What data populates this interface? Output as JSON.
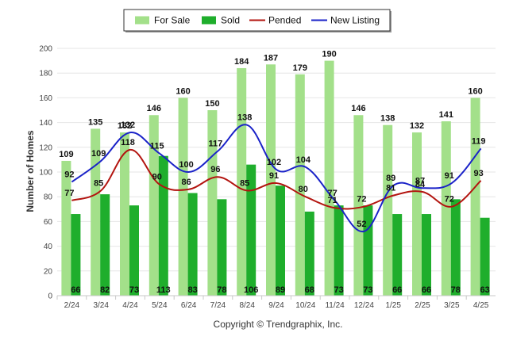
{
  "chart_data": {
    "type": "bar",
    "categories": [
      "2/24",
      "3/24",
      "4/24",
      "5/24",
      "6/24",
      "7/24",
      "8/24",
      "9/24",
      "10/24",
      "11/24",
      "12/24",
      "1/25",
      "2/25",
      "3/25",
      "4/25"
    ],
    "series": [
      {
        "name": "For Sale",
        "kind": "bar",
        "color": "#a3e08a",
        "values": [
          109,
          135,
          132,
          146,
          160,
          150,
          184,
          187,
          179,
          190,
          146,
          138,
          132,
          141,
          160
        ]
      },
      {
        "name": "Sold",
        "kind": "bar",
        "color": "#1fae2c",
        "values": [
          66,
          82,
          73,
          113,
          83,
          78,
          106,
          89,
          68,
          73,
          73,
          66,
          66,
          78,
          63
        ]
      },
      {
        "name": "Pended",
        "kind": "line",
        "color": "#b3140f",
        "values": [
          77,
          85,
          118,
          90,
          86,
          96,
          85,
          91,
          80,
          71,
          72,
          81,
          84,
          72,
          93
        ]
      },
      {
        "name": "New Listing",
        "kind": "line",
        "color": "#1a22c8",
        "values": [
          92,
          109,
          132,
          115,
          100,
          117,
          138,
          102,
          104,
          77,
          52,
          89,
          87,
          91,
          119
        ]
      }
    ],
    "ylabel": "Number of Homes",
    "xlabel": "",
    "ylim": [
      0,
      200
    ],
    "yticks": [
      0,
      20,
      40,
      60,
      80,
      100,
      120,
      140,
      160,
      180,
      200
    ],
    "grid": true,
    "legend_position": "top-center"
  },
  "footer": {
    "copyright": "Copyright © Trendgraphix, Inc."
  }
}
